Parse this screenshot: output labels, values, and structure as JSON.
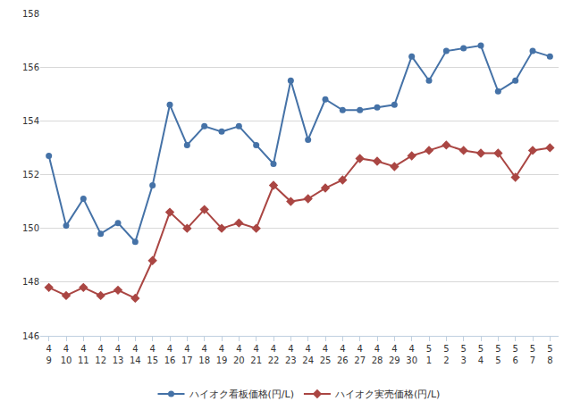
{
  "chart_data": {
    "type": "line",
    "categories": [
      "4\n9",
      "4\n10",
      "4\n11",
      "4\n12",
      "4\n13",
      "4\n14",
      "4\n15",
      "4\n16",
      "4\n17",
      "4\n18",
      "4\n19",
      "4\n20",
      "4\n21",
      "4\n22",
      "4\n23",
      "4\n24",
      "4\n25",
      "4\n26",
      "4\n27",
      "4\n28",
      "4\n29",
      "4\n30",
      "5\n1",
      "5\n2",
      "5\n3",
      "5\n4",
      "5\n5",
      "5\n6",
      "5\n7",
      "5\n8"
    ],
    "series": [
      {
        "name": "ハイオク看板価格(円/L)",
        "color": "#4572a7",
        "marker": "circle",
        "values": [
          152.7,
          150.1,
          151.1,
          149.8,
          150.2,
          149.5,
          151.6,
          154.6,
          153.1,
          153.8,
          153.6,
          153.8,
          153.1,
          152.4,
          155.5,
          153.3,
          154.8,
          154.4,
          154.4,
          154.5,
          154.6,
          156.4,
          155.5,
          156.6,
          156.7,
          156.8,
          155.1,
          155.5,
          156.6,
          156.4
        ]
      },
      {
        "name": "ハイオク実売価格(円/L)",
        "color": "#aa4643",
        "marker": "diamond",
        "values": [
          147.8,
          147.5,
          147.8,
          147.5,
          147.7,
          147.4,
          148.8,
          150.6,
          150.0,
          150.7,
          150.0,
          150.2,
          150.0,
          151.6,
          151.0,
          151.1,
          151.5,
          151.8,
          152.6,
          152.5,
          152.3,
          152.7,
          152.9,
          153.1,
          152.9,
          152.8,
          152.8,
          151.9,
          152.9,
          153.0
        ]
      }
    ],
    "ylim": [
      146,
      158
    ],
    "yticks": [
      146,
      148,
      150,
      152,
      154,
      156,
      158
    ],
    "grid": true,
    "legend": "bottom"
  }
}
